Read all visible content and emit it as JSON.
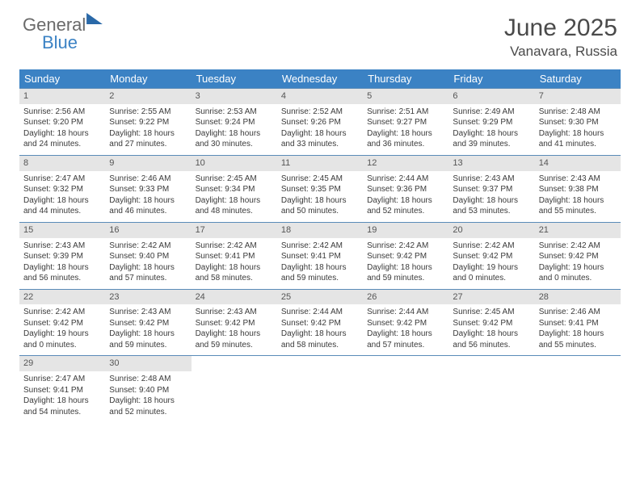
{
  "logo": {
    "text1": "General",
    "text2": "Blue"
  },
  "header": {
    "title": "June 2025",
    "location": "Vanavara, Russia"
  },
  "colors": {
    "header_bg": "#3b82c4",
    "daynum_bg": "#e5e5e5",
    "row_border": "#5a8bb8",
    "text": "#3a3a3a",
    "title": "#4a4a4a"
  },
  "weekdays": [
    "Sunday",
    "Monday",
    "Tuesday",
    "Wednesday",
    "Thursday",
    "Friday",
    "Saturday"
  ],
  "weeks": [
    [
      {
        "n": "1",
        "sr": "2:56 AM",
        "ss": "9:20 PM",
        "dl": "18 hours and 24 minutes."
      },
      {
        "n": "2",
        "sr": "2:55 AM",
        "ss": "9:22 PM",
        "dl": "18 hours and 27 minutes."
      },
      {
        "n": "3",
        "sr": "2:53 AM",
        "ss": "9:24 PM",
        "dl": "18 hours and 30 minutes."
      },
      {
        "n": "4",
        "sr": "2:52 AM",
        "ss": "9:26 PM",
        "dl": "18 hours and 33 minutes."
      },
      {
        "n": "5",
        "sr": "2:51 AM",
        "ss": "9:27 PM",
        "dl": "18 hours and 36 minutes."
      },
      {
        "n": "6",
        "sr": "2:49 AM",
        "ss": "9:29 PM",
        "dl": "18 hours and 39 minutes."
      },
      {
        "n": "7",
        "sr": "2:48 AM",
        "ss": "9:30 PM",
        "dl": "18 hours and 41 minutes."
      }
    ],
    [
      {
        "n": "8",
        "sr": "2:47 AM",
        "ss": "9:32 PM",
        "dl": "18 hours and 44 minutes."
      },
      {
        "n": "9",
        "sr": "2:46 AM",
        "ss": "9:33 PM",
        "dl": "18 hours and 46 minutes."
      },
      {
        "n": "10",
        "sr": "2:45 AM",
        "ss": "9:34 PM",
        "dl": "18 hours and 48 minutes."
      },
      {
        "n": "11",
        "sr": "2:45 AM",
        "ss": "9:35 PM",
        "dl": "18 hours and 50 minutes."
      },
      {
        "n": "12",
        "sr": "2:44 AM",
        "ss": "9:36 PM",
        "dl": "18 hours and 52 minutes."
      },
      {
        "n": "13",
        "sr": "2:43 AM",
        "ss": "9:37 PM",
        "dl": "18 hours and 53 minutes."
      },
      {
        "n": "14",
        "sr": "2:43 AM",
        "ss": "9:38 PM",
        "dl": "18 hours and 55 minutes."
      }
    ],
    [
      {
        "n": "15",
        "sr": "2:43 AM",
        "ss": "9:39 PM",
        "dl": "18 hours and 56 minutes."
      },
      {
        "n": "16",
        "sr": "2:42 AM",
        "ss": "9:40 PM",
        "dl": "18 hours and 57 minutes."
      },
      {
        "n": "17",
        "sr": "2:42 AM",
        "ss": "9:41 PM",
        "dl": "18 hours and 58 minutes."
      },
      {
        "n": "18",
        "sr": "2:42 AM",
        "ss": "9:41 PM",
        "dl": "18 hours and 59 minutes."
      },
      {
        "n": "19",
        "sr": "2:42 AM",
        "ss": "9:42 PM",
        "dl": "18 hours and 59 minutes."
      },
      {
        "n": "20",
        "sr": "2:42 AM",
        "ss": "9:42 PM",
        "dl": "19 hours and 0 minutes."
      },
      {
        "n": "21",
        "sr": "2:42 AM",
        "ss": "9:42 PM",
        "dl": "19 hours and 0 minutes."
      }
    ],
    [
      {
        "n": "22",
        "sr": "2:42 AM",
        "ss": "9:42 PM",
        "dl": "19 hours and 0 minutes."
      },
      {
        "n": "23",
        "sr": "2:43 AM",
        "ss": "9:42 PM",
        "dl": "18 hours and 59 minutes."
      },
      {
        "n": "24",
        "sr": "2:43 AM",
        "ss": "9:42 PM",
        "dl": "18 hours and 59 minutes."
      },
      {
        "n": "25",
        "sr": "2:44 AM",
        "ss": "9:42 PM",
        "dl": "18 hours and 58 minutes."
      },
      {
        "n": "26",
        "sr": "2:44 AM",
        "ss": "9:42 PM",
        "dl": "18 hours and 57 minutes."
      },
      {
        "n": "27",
        "sr": "2:45 AM",
        "ss": "9:42 PM",
        "dl": "18 hours and 56 minutes."
      },
      {
        "n": "28",
        "sr": "2:46 AM",
        "ss": "9:41 PM",
        "dl": "18 hours and 55 minutes."
      }
    ],
    [
      {
        "n": "29",
        "sr": "2:47 AM",
        "ss": "9:41 PM",
        "dl": "18 hours and 54 minutes."
      },
      {
        "n": "30",
        "sr": "2:48 AM",
        "ss": "9:40 PM",
        "dl": "18 hours and 52 minutes."
      },
      null,
      null,
      null,
      null,
      null
    ]
  ],
  "labels": {
    "sunrise": "Sunrise: ",
    "sunset": "Sunset: ",
    "daylight": "Daylight: "
  }
}
